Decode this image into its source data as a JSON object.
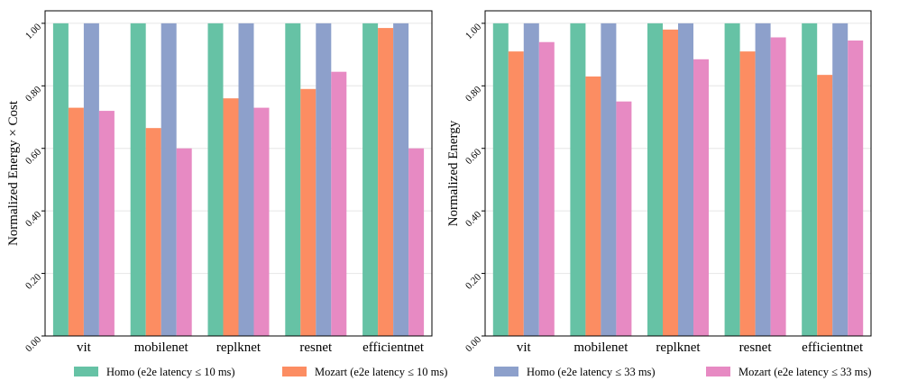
{
  "legend": {
    "items": [
      {
        "label": "Homo (e2e latency ≤ 10 ms)",
        "color": "#66c2a5"
      },
      {
        "label": "Mozart (e2e latency ≤ 10 ms)",
        "color": "#fc8d62"
      },
      {
        "label": "Homo (e2e latency ≤ 33 ms)",
        "color": "#8da0cb"
      },
      {
        "label": "Mozart (e2e latency ≤ 33 ms)",
        "color": "#e78ac3"
      }
    ]
  },
  "chart_data": [
    {
      "type": "bar",
      "title": "",
      "xlabel": "",
      "ylabel": "Normalized Energy × Cost",
      "ylim": [
        0,
        1.04
      ],
      "yticks": [
        "0.00",
        "0.20",
        "0.40",
        "0.60",
        "0.80",
        "1.00"
      ],
      "grid": "horizontal",
      "categories": [
        "vit",
        "mobilenet",
        "replknet",
        "resnet",
        "efficientnet"
      ],
      "series": [
        {
          "name": "Homo (e2e latency ≤ 10 ms)",
          "values": [
            1.0,
            1.0,
            1.0,
            1.0,
            1.0
          ]
        },
        {
          "name": "Mozart (e2e latency ≤ 10 ms)",
          "values": [
            0.73,
            0.665,
            0.76,
            0.79,
            0.985
          ]
        },
        {
          "name": "Homo (e2e latency ≤ 33 ms)",
          "values": [
            1.0,
            1.0,
            1.0,
            1.0,
            1.0
          ]
        },
        {
          "name": "Mozart (e2e latency ≤ 33 ms)",
          "values": [
            0.72,
            0.6,
            0.73,
            0.845,
            0.6
          ]
        }
      ]
    },
    {
      "type": "bar",
      "title": "",
      "xlabel": "",
      "ylabel": "Normalized Energy",
      "ylim": [
        0,
        1.04
      ],
      "yticks": [
        "0.00",
        "0.20",
        "0.40",
        "0.60",
        "0.80",
        "1.00"
      ],
      "grid": "horizontal",
      "categories": [
        "vit",
        "mobilenet",
        "replknet",
        "resnet",
        "efficientnet"
      ],
      "series": [
        {
          "name": "Homo (e2e latency ≤ 10 ms)",
          "values": [
            1.0,
            1.0,
            1.0,
            1.0,
            1.0
          ]
        },
        {
          "name": "Mozart (e2e latency ≤ 10 ms)",
          "values": [
            0.91,
            0.83,
            0.98,
            0.91,
            0.835
          ]
        },
        {
          "name": "Homo (e2e latency ≤ 33 ms)",
          "values": [
            1.0,
            1.0,
            1.0,
            1.0,
            1.0
          ]
        },
        {
          "name": "Mozart (e2e latency ≤ 33 ms)",
          "values": [
            0.94,
            0.75,
            0.885,
            0.955,
            0.945
          ]
        }
      ]
    }
  ]
}
